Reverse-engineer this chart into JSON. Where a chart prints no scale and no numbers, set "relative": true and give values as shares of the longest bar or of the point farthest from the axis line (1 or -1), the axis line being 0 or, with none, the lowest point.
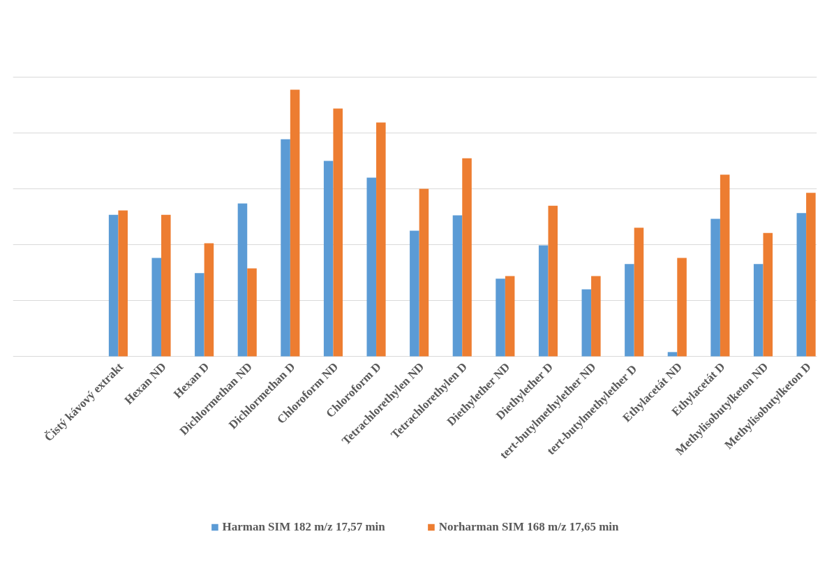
{
  "chart_data": {
    "type": "bar",
    "relative": true,
    "grid": "y",
    "legend": "bottom",
    "categories": [
      "Čistý kávový extrakt",
      "Hexan ND",
      "Hexan D",
      "Dichlormethan ND",
      "Dichlormethan D",
      "Chloroform ND",
      "Chloroform D",
      "Tetrachlorethylen ND",
      "Tetrachlorethylen D",
      "Diethylether ND",
      "Diethylether D",
      "tert-butylmethylether ND",
      "tert-butylmethylether  D",
      "Ethylacetát ND",
      "Ethylacetát D",
      "Methylisobutylketon ND",
      "Methylisobutylketon D"
    ],
    "series": [
      {
        "name": "Harman SIM 182 m/z 17,57 min",
        "color": "#5b9bd5",
        "values": [
          0.531,
          0.369,
          0.312,
          0.573,
          0.814,
          0.733,
          0.67,
          0.471,
          0.529,
          0.291,
          0.416,
          0.251,
          0.346,
          0.016,
          0.516,
          0.346,
          0.537
        ]
      },
      {
        "name": "Norharman SIM 168 m/z 17,65 min",
        "color": "#ed7d31",
        "values": [
          0.547,
          0.531,
          0.424,
          0.33,
          1,
          0.929,
          0.877,
          0.628,
          0.743,
          0.301,
          0.565,
          0.301,
          0.482,
          0.369,
          0.681,
          0.463,
          0.613
        ]
      }
    ]
  }
}
